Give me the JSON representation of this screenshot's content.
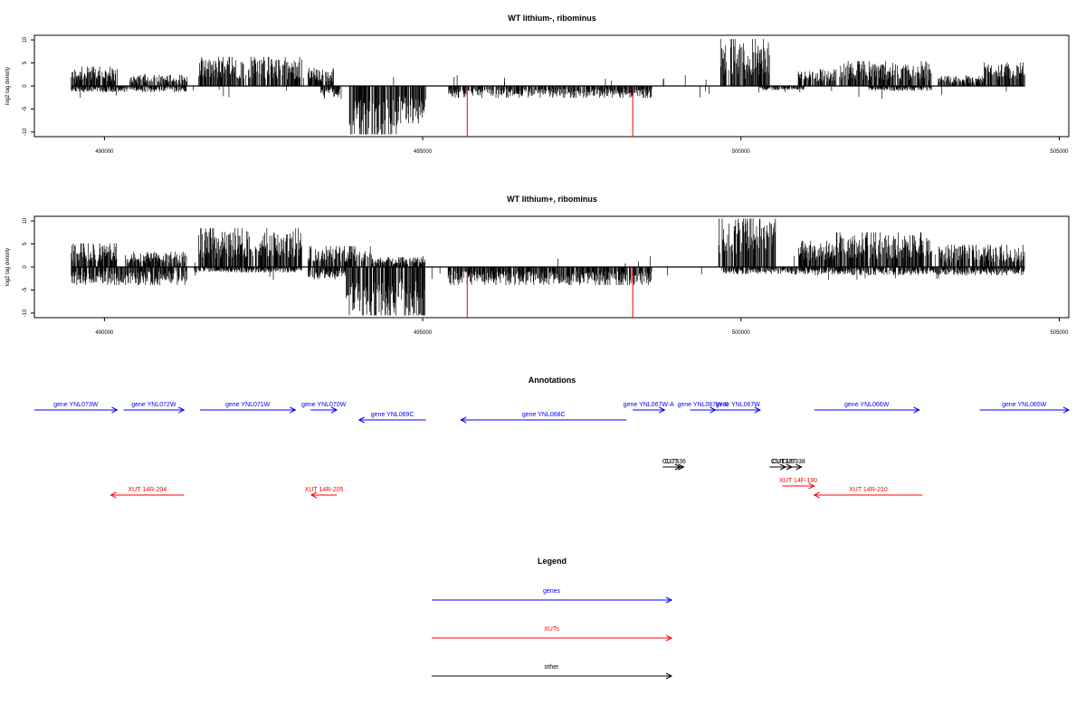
{
  "chart_data": [
    {
      "type": "bar",
      "title": "WT lithium-, ribominus",
      "ylabel": "log2 tag density",
      "xlim": [
        488900,
        505150
      ],
      "ylim": [
        -11,
        11
      ],
      "yticks": [
        10,
        5,
        0,
        -5,
        -10
      ],
      "xticks": [
        490000,
        495000,
        500000,
        505000
      ],
      "data_range": [
        489480,
        504460
      ],
      "plus_segments": [
        {
          "from": 489480,
          "to": 490200,
          "level": 2.8
        },
        {
          "from": 490400,
          "to": 491300,
          "level": 1.6
        },
        {
          "from": 491480,
          "to": 493100,
          "level": 4.2
        },
        {
          "from": 493200,
          "to": 493600,
          "level": 2.6
        },
        {
          "from": 499680,
          "to": 500450,
          "level": 6.8
        },
        {
          "from": 500900,
          "to": 501500,
          "level": 2.4
        },
        {
          "from": 501550,
          "to": 503000,
          "level": 3.6
        },
        {
          "from": 503100,
          "to": 503800,
          "level": 1.4
        },
        {
          "from": 503800,
          "to": 504460,
          "level": 3.4
        }
      ],
      "minus_segments": [
        {
          "from": 489480,
          "to": 491300,
          "level": 0.9
        },
        {
          "from": 493400,
          "to": 493700,
          "level": 1.6
        },
        {
          "from": 493850,
          "to": 494600,
          "level": 8.6
        },
        {
          "from": 494600,
          "to": 495050,
          "level": 5.4
        },
        {
          "from": 495400,
          "to": 498600,
          "level": 1.7
        },
        {
          "from": 500300,
          "to": 501000,
          "level": 0.6
        },
        {
          "from": 502000,
          "to": 503000,
          "level": 0.7
        }
      ],
      "red_marks": [
        495700,
        498300
      ],
      "red_depth": -11
    },
    {
      "type": "bar",
      "title": "WT lithium+, ribominus",
      "ylabel": "log2 tag density",
      "xlim": [
        488900,
        505150
      ],
      "ylim": [
        -11,
        11
      ],
      "yticks": [
        10,
        5,
        0,
        -5,
        -10
      ],
      "xticks": [
        490000,
        495000,
        500000,
        505000
      ],
      "data_range": [
        489480,
        504460
      ],
      "plus_segments": [
        {
          "from": 489480,
          "to": 490200,
          "level": 3.4
        },
        {
          "from": 490350,
          "to": 491300,
          "level": 2.2
        },
        {
          "from": 491480,
          "to": 493100,
          "level": 5.6
        },
        {
          "from": 493200,
          "to": 494200,
          "level": 3.0
        },
        {
          "from": 494200,
          "to": 495050,
          "level": 1.4
        },
        {
          "from": 499650,
          "to": 500550,
          "level": 8.2
        },
        {
          "from": 500900,
          "to": 501500,
          "level": 3.8
        },
        {
          "from": 501500,
          "to": 503000,
          "level": 5.0
        },
        {
          "from": 503100,
          "to": 504460,
          "level": 3.2
        }
      ],
      "minus_segments": [
        {
          "from": 489480,
          "to": 491300,
          "level": 2.6
        },
        {
          "from": 491400,
          "to": 493100,
          "level": 0.8
        },
        {
          "from": 493200,
          "to": 493800,
          "level": 1.8
        },
        {
          "from": 493800,
          "to": 495050,
          "level": 8.8
        },
        {
          "from": 495400,
          "to": 498600,
          "level": 2.6
        },
        {
          "from": 499700,
          "to": 500800,
          "level": 1.0
        },
        {
          "from": 500800,
          "to": 504460,
          "level": 1.2
        }
      ],
      "red_marks": [
        495700,
        498300
      ],
      "red_depth": -11
    }
  ],
  "annotations": {
    "title": "Annotations",
    "xlim": [
      488900,
      505150
    ],
    "features": [
      {
        "label": "gene YNL073W",
        "kind": "gene",
        "from": 488900,
        "to": 490200,
        "strand": "+",
        "row": 1
      },
      {
        "label": "gene YNL072W",
        "kind": "gene",
        "from": 490300,
        "to": 491250,
        "strand": "+",
        "row": 1
      },
      {
        "label": "gene YNL071W",
        "kind": "gene",
        "from": 491500,
        "to": 493000,
        "strand": "+",
        "row": 1
      },
      {
        "label": "gene YNL070W",
        "kind": "gene",
        "from": 493240,
        "to": 493650,
        "strand": "+",
        "row": 1
      },
      {
        "label": "gene YNL069C",
        "kind": "gene",
        "from": 494000,
        "to": 495050,
        "strand": "-",
        "row": 2
      },
      {
        "label": "gene YNL068C",
        "kind": "gene",
        "from": 495600,
        "to": 498200,
        "strand": "-",
        "row": 2
      },
      {
        "label": "gene YNL067W-A",
        "kind": "gene",
        "from": 498300,
        "to": 498800,
        "strand": "+",
        "row": 1
      },
      {
        "label": "gene YNL067W-B",
        "kind": "gene",
        "from": 499200,
        "to": 499600,
        "strand": "+",
        "row": 1
      },
      {
        "label": "gene YNL067W",
        "kind": "gene",
        "from": 499600,
        "to": 500300,
        "strand": "+",
        "row": 1
      },
      {
        "label": "gene YNL066W",
        "kind": "gene",
        "from": 501150,
        "to": 502800,
        "strand": "+",
        "row": 1
      },
      {
        "label": "gene YNL065W",
        "kind": "gene",
        "from": 503750,
        "to": 505150,
        "strand": "+",
        "row": 1
      },
      {
        "label": "CUT",
        "kind": "other",
        "from": 498770,
        "to": 499050,
        "strand": "+",
        "row": 3
      },
      {
        "label": "CUT336",
        "kind": "other",
        "from": 498800,
        "to": 499100,
        "strand": "+",
        "row": 3
      },
      {
        "label": "CUT",
        "kind": "other",
        "from": 500450,
        "to": 500700,
        "strand": "+",
        "row": 3
      },
      {
        "label": "CUT337",
        "kind": "other",
        "from": 500550,
        "to": 500800,
        "strand": "+",
        "row": 3
      },
      {
        "label": "CUT338",
        "kind": "other",
        "from": 500700,
        "to": 500950,
        "strand": "+",
        "row": 3
      },
      {
        "label": "XUT 14F-190",
        "kind": "xut",
        "from": 500650,
        "to": 501150,
        "strand": "+",
        "row": 4
      },
      {
        "label": "XUT 14R-204",
        "kind": "xut",
        "from": 490100,
        "to": 491250,
        "strand": "-",
        "row": 5
      },
      {
        "label": "XUT 14R-205",
        "kind": "xut",
        "from": 493250,
        "to": 493650,
        "strand": "-",
        "row": 5
      },
      {
        "label": "XUT 14R-210",
        "kind": "xut",
        "from": 501150,
        "to": 502850,
        "strand": "-",
        "row": 5
      }
    ]
  },
  "legend": {
    "title": "Legend",
    "entries": [
      {
        "label": "genes",
        "kind": "gene"
      },
      {
        "label": "XUTs",
        "kind": "xut"
      },
      {
        "label": "other",
        "kind": "other"
      }
    ]
  },
  "colors": {
    "gene": "#0000ff",
    "xut": "#ff0000",
    "other": "#000000",
    "bar": "#000000",
    "red_mark": "#ff0000",
    "frame": "#000000"
  }
}
